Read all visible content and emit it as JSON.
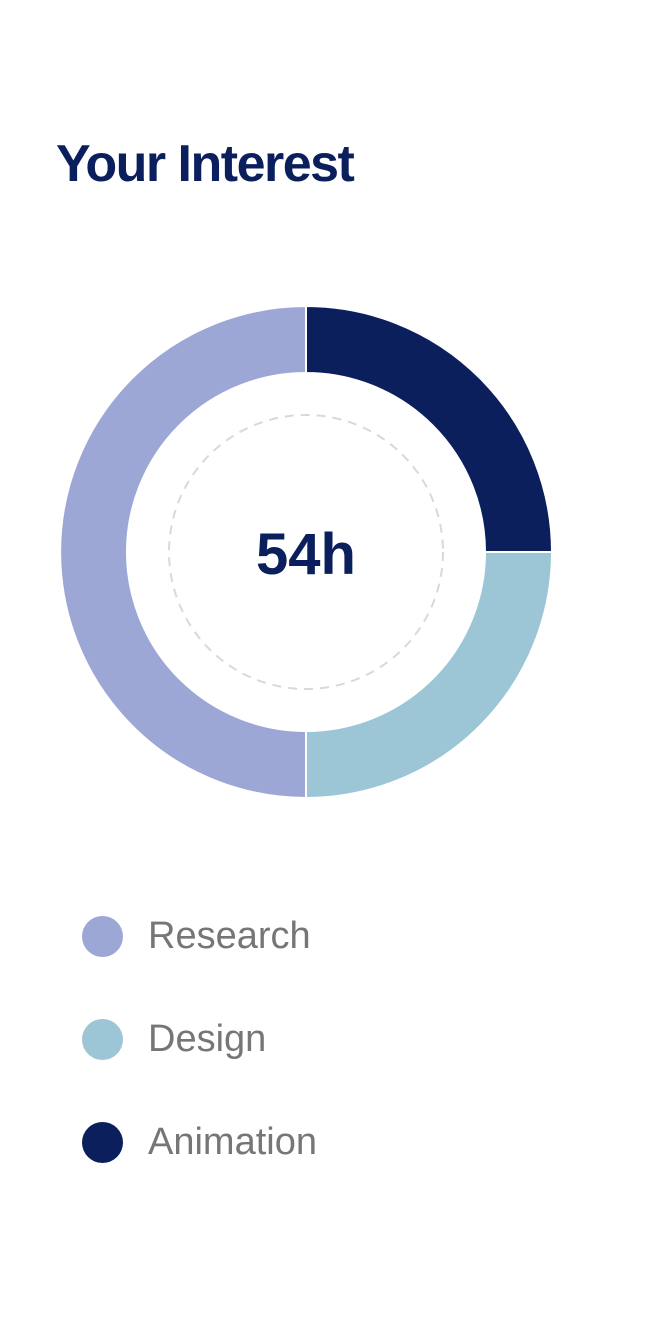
{
  "card": {
    "title": "Your Interest"
  },
  "chart_data": {
    "type": "pie",
    "style": "donut",
    "title": "Your Interest",
    "center_label": "54h",
    "categories": [
      "Research",
      "Design",
      "Animation"
    ],
    "values": [
      50,
      25,
      25
    ],
    "unit": "%",
    "colors": [
      "#9da7d6",
      "#9cc5d6",
      "#0a1f5c"
    ],
    "legend": "bottom-left",
    "start_angle_deg": 90,
    "direction": "counterclockwise"
  },
  "legend": {
    "items": [
      {
        "label": "Research",
        "color": "#9da7d6"
      },
      {
        "label": "Design",
        "color": "#9cc5d6"
      },
      {
        "label": "Animation",
        "color": "#0a1f5c"
      }
    ]
  },
  "colors": {
    "title": "#0a1f5c",
    "center_text": "#0a1f5c",
    "legend_text": "#767676",
    "dashed_ring": "#d9d9d9"
  }
}
